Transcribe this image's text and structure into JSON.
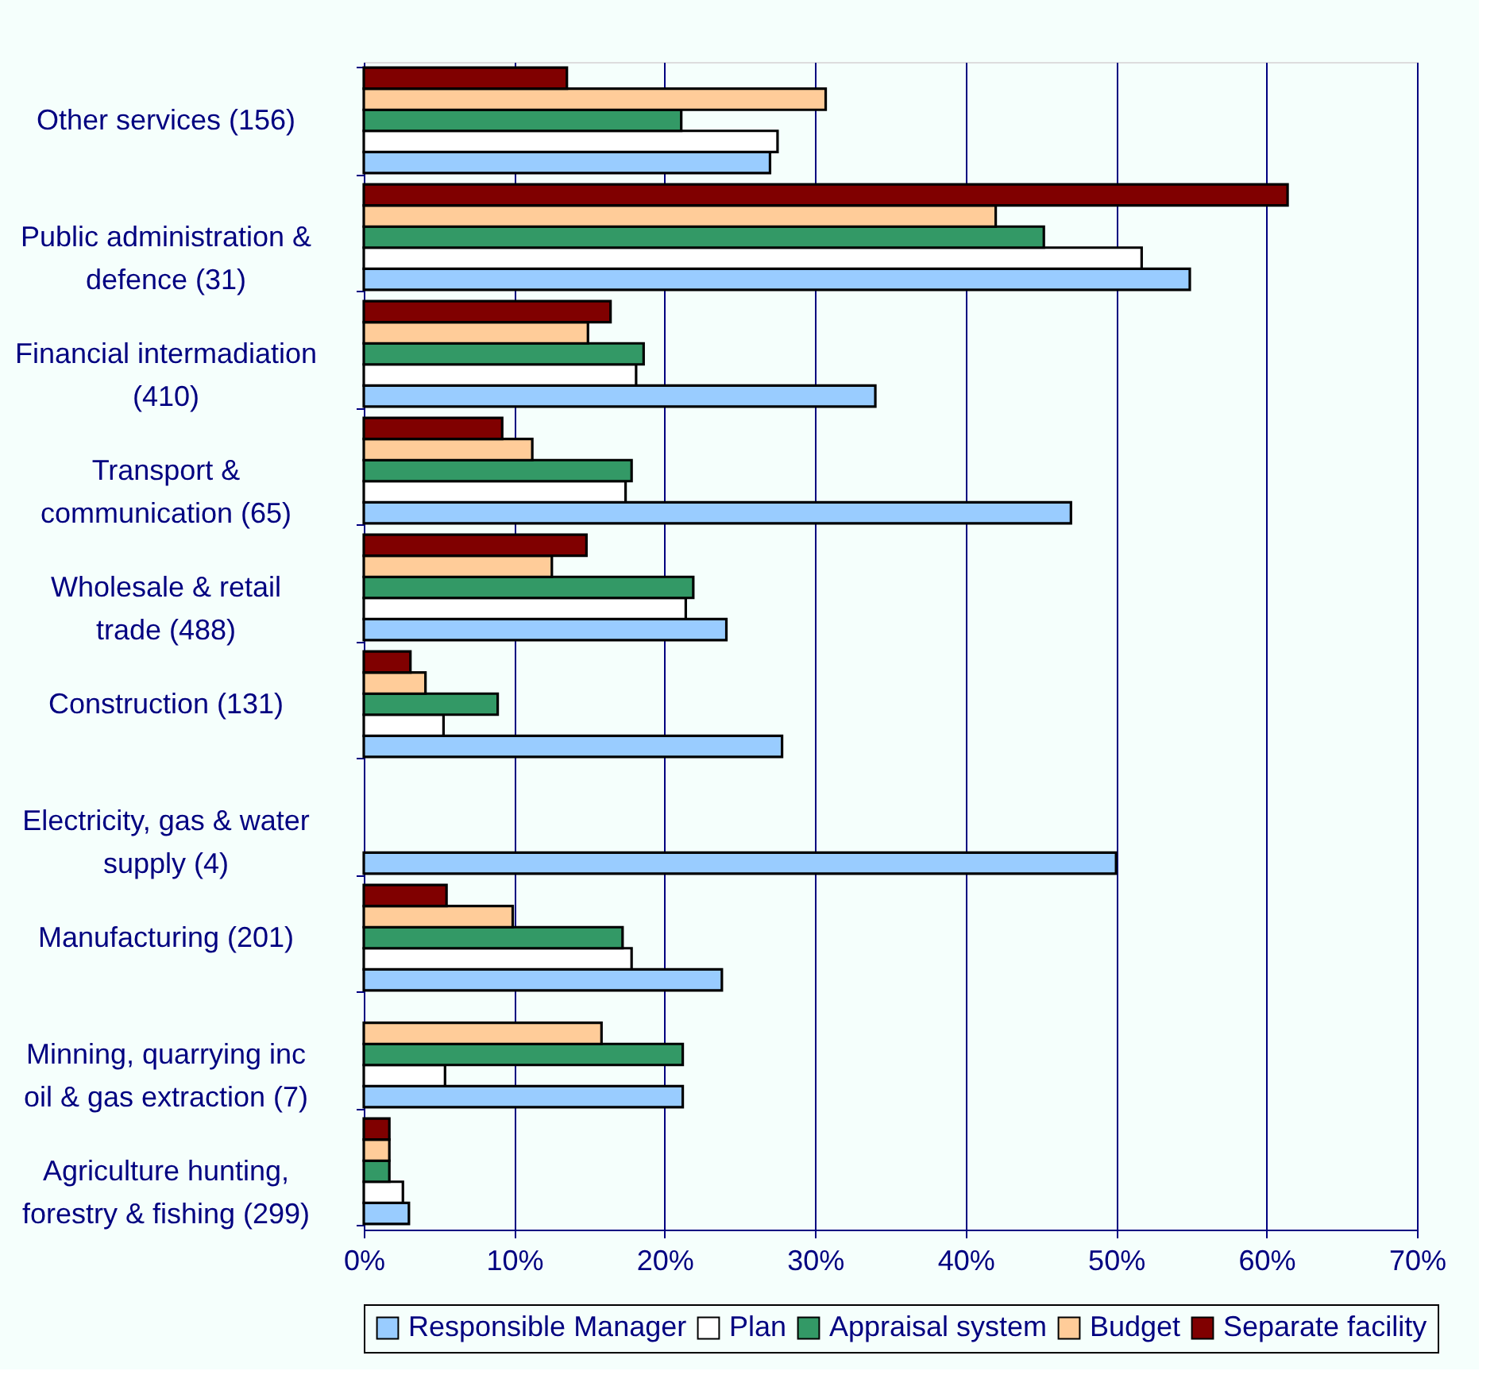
{
  "chart_data": {
    "type": "bar",
    "orientation": "horizontal",
    "categories": [
      "Other services (156)",
      "Public administration &\ndefence (31)",
      "Financial intermadiation\n(410)",
      "Transport &\ncommunication (65)",
      "Wholesale & retail\ntrade (488)",
      "Construction (131)",
      "Electricity, gas & water\nsupply (4)",
      "Manufacturing (201)",
      "Minning, quarrying inc\noil & gas extraction (7)",
      "Agriculture  hunting,\nforestry & fishing (299)"
    ],
    "series": [
      {
        "name": "Responsible Manager",
        "color": "#99ccff",
        "values": [
          27.0,
          54.9,
          34.0,
          47.0,
          24.1,
          27.8,
          50.0,
          23.8,
          21.2,
          3.0
        ]
      },
      {
        "name": "Plan",
        "color": "#ffffff",
        "values": [
          27.5,
          51.7,
          18.1,
          17.4,
          21.4,
          5.3,
          null,
          17.8,
          5.4,
          2.6
        ]
      },
      {
        "name": "Appraisal system",
        "color": "#339966",
        "values": [
          21.1,
          45.2,
          18.6,
          17.8,
          21.9,
          8.9,
          null,
          17.2,
          21.2,
          1.7
        ]
      },
      {
        "name": "Budget",
        "color": "#ffcc99",
        "values": [
          30.7,
          42.0,
          14.9,
          11.2,
          12.5,
          4.1,
          null,
          9.9,
          15.8,
          1.7
        ]
      },
      {
        "name": "Separate facility",
        "color": "#800000",
        "values": [
          13.5,
          61.4,
          16.4,
          9.2,
          14.8,
          3.1,
          null,
          5.5,
          null,
          1.7
        ]
      }
    ],
    "xlim": [
      0,
      70
    ],
    "xticks": [
      {
        "value": 0,
        "label": "0%"
      },
      {
        "value": 10,
        "label": "10%"
      },
      {
        "value": 20,
        "label": "20%"
      },
      {
        "value": 30,
        "label": "30%"
      },
      {
        "value": 40,
        "label": "40%"
      },
      {
        "value": 50,
        "label": "50%"
      },
      {
        "value": 60,
        "label": "60%"
      },
      {
        "value": 70,
        "label": "70%"
      }
    ],
    "grid": "x",
    "legend": "bottom"
  }
}
